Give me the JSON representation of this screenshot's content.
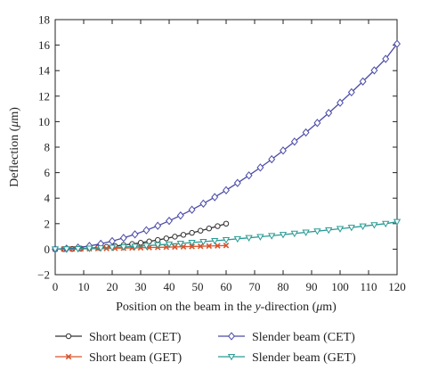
{
  "chart_data": {
    "type": "line",
    "xlabel": {
      "prefix": "Position on the beam in the ",
      "italic": "y",
      "middle": "-direction (",
      "unit_italic": "μ",
      "suffix": "m)"
    },
    "ylabel": {
      "prefix": "Deflection (",
      "unit_italic": "μ",
      "suffix": "m)"
    },
    "xlim": [
      0,
      120
    ],
    "ylim": [
      -2,
      18
    ],
    "xticks": [
      0,
      10,
      20,
      30,
      40,
      50,
      60,
      70,
      80,
      90,
      100,
      110,
      120
    ],
    "yticks": [
      -2,
      0,
      2,
      4,
      6,
      8,
      10,
      12,
      14,
      16,
      18
    ],
    "grid": false,
    "legend_position": "bottom",
    "series": [
      {
        "name": "Short beam (CET)",
        "color": "#333333",
        "marker": "circle",
        "x": [
          0,
          3,
          6,
          9,
          12,
          15,
          18,
          21,
          24,
          27,
          30,
          33,
          36,
          39,
          42,
          45,
          48,
          51,
          54,
          57,
          60
        ],
        "y": [
          0.0,
          0.005,
          0.02,
          0.045,
          0.08,
          0.125,
          0.18,
          0.245,
          0.32,
          0.405,
          0.5,
          0.605,
          0.72,
          0.845,
          0.98,
          1.125,
          1.28,
          1.445,
          1.62,
          1.805,
          2.0
        ]
      },
      {
        "name": "Short beam (GET)",
        "color": "#d9532b",
        "marker": "x",
        "x": [
          0,
          3,
          6,
          9,
          12,
          15,
          18,
          21,
          24,
          27,
          30,
          33,
          36,
          39,
          42,
          45,
          48,
          51,
          54,
          57,
          60
        ],
        "y": [
          0.0,
          0.008,
          0.017,
          0.026,
          0.036,
          0.047,
          0.058,
          0.07,
          0.083,
          0.096,
          0.11,
          0.125,
          0.14,
          0.156,
          0.173,
          0.19,
          0.208,
          0.227,
          0.246,
          0.266,
          0.29
        ]
      },
      {
        "name": "Slender beam (CET)",
        "color": "#4a4aa8",
        "marker": "diamond",
        "x": [
          0,
          4,
          8,
          12,
          16,
          20,
          24,
          28,
          32,
          36,
          40,
          44,
          48,
          52,
          56,
          60,
          64,
          68,
          72,
          76,
          80,
          84,
          88,
          92,
          96,
          100,
          104,
          108,
          112,
          116,
          120
        ],
        "y": [
          0.0,
          0.04,
          0.12,
          0.25,
          0.42,
          0.63,
          0.88,
          1.16,
          1.48,
          1.83,
          2.22,
          2.64,
          3.09,
          3.57,
          4.08,
          4.62,
          5.19,
          5.78,
          6.4,
          7.05,
          7.73,
          8.43,
          9.15,
          9.9,
          10.68,
          11.48,
          12.3,
          13.15,
          14.02,
          14.92,
          16.1
        ]
      },
      {
        "name": "Slender beam (GET)",
        "color": "#2a9a94",
        "marker": "triangle-down",
        "x": [
          0,
          4,
          8,
          12,
          16,
          20,
          24,
          28,
          32,
          36,
          40,
          44,
          48,
          52,
          56,
          60,
          64,
          68,
          72,
          76,
          80,
          84,
          88,
          92,
          96,
          100,
          104,
          108,
          112,
          116,
          120
        ],
        "y": [
          0.0,
          0.01,
          0.03,
          0.06,
          0.09,
          0.13,
          0.17,
          0.22,
          0.27,
          0.33,
          0.39,
          0.45,
          0.52,
          0.59,
          0.66,
          0.73,
          0.81,
          0.89,
          0.97,
          1.05,
          1.14,
          1.23,
          1.32,
          1.41,
          1.5,
          1.6,
          1.7,
          1.8,
          1.9,
          2.0,
          2.15
        ]
      }
    ]
  }
}
